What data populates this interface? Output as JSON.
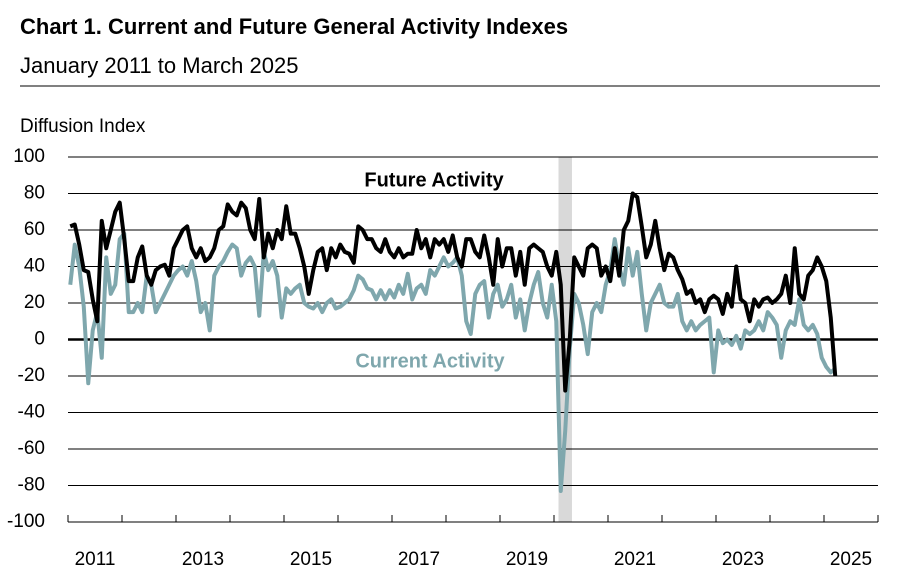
{
  "chart_data": {
    "type": "line",
    "title": "Chart 1. Current and Future General Activity Indexes",
    "subtitle": "January 2011 to March 2025",
    "ylabel": "Diffusion Index",
    "annotations": [
      "Future Activity",
      "Current Activity"
    ],
    "xlim": [
      2011,
      2026
    ],
    "ylim": [
      -100,
      100
    ],
    "yticks": [
      100,
      80,
      60,
      40,
      20,
      0,
      -20,
      -40,
      -60,
      -80,
      -100
    ],
    "xticks": [
      {
        "value": 2011.5,
        "label": "2011"
      },
      {
        "value": 2013.5,
        "label": "2013"
      },
      {
        "value": 2015.5,
        "label": "2015"
      },
      {
        "value": 2017.5,
        "label": "2017"
      },
      {
        "value": 2019.5,
        "label": "2019"
      },
      {
        "value": 2021.5,
        "label": "2021"
      },
      {
        "value": 2023.5,
        "label": "2023"
      },
      {
        "value": 2025.5,
        "label": "2025"
      }
    ],
    "xtick_marks": [
      2011,
      2012,
      2013,
      2014,
      2015,
      2016,
      2017,
      2018,
      2019,
      2020,
      2021,
      2022,
      2023,
      2024,
      2025,
      2026
    ],
    "recession": [
      2020.083,
      2020.333
    ],
    "grid": true,
    "x": [
      2011.042,
      2011.125,
      2011.208,
      2011.292,
      2011.375,
      2011.458,
      2011.542,
      2011.625,
      2011.708,
      2011.792,
      2011.875,
      2011.958,
      2012.042,
      2012.125,
      2012.208,
      2012.292,
      2012.375,
      2012.458,
      2012.542,
      2012.625,
      2012.708,
      2012.792,
      2012.875,
      2012.958,
      2013.042,
      2013.125,
      2013.208,
      2013.292,
      2013.375,
      2013.458,
      2013.542,
      2013.625,
      2013.708,
      2013.792,
      2013.875,
      2013.958,
      2014.042,
      2014.125,
      2014.208,
      2014.292,
      2014.375,
      2014.458,
      2014.542,
      2014.625,
      2014.708,
      2014.792,
      2014.875,
      2014.958,
      2015.042,
      2015.125,
      2015.208,
      2015.292,
      2015.375,
      2015.458,
      2015.542,
      2015.625,
      2015.708,
      2015.792,
      2015.875,
      2015.958,
      2016.042,
      2016.125,
      2016.208,
      2016.292,
      2016.375,
      2016.458,
      2016.542,
      2016.625,
      2016.708,
      2016.792,
      2016.875,
      2016.958,
      2017.042,
      2017.125,
      2017.208,
      2017.292,
      2017.375,
      2017.458,
      2017.542,
      2017.625,
      2017.708,
      2017.792,
      2017.875,
      2017.958,
      2018.042,
      2018.125,
      2018.208,
      2018.292,
      2018.375,
      2018.458,
      2018.542,
      2018.625,
      2018.708,
      2018.792,
      2018.875,
      2018.958,
      2019.042,
      2019.125,
      2019.208,
      2019.292,
      2019.375,
      2019.458,
      2019.542,
      2019.625,
      2019.708,
      2019.792,
      2019.875,
      2019.958,
      2020.042,
      2020.125,
      2020.208,
      2020.292,
      2020.375,
      2020.458,
      2020.542,
      2020.625,
      2020.708,
      2020.792,
      2020.875,
      2020.958,
      2021.042,
      2021.125,
      2021.208,
      2021.292,
      2021.375,
      2021.458,
      2021.542,
      2021.625,
      2021.708,
      2021.792,
      2021.875,
      2021.958,
      2022.042,
      2022.125,
      2022.208,
      2022.292,
      2022.375,
      2022.458,
      2022.542,
      2022.625,
      2022.708,
      2022.792,
      2022.875,
      2022.958,
      2023.042,
      2023.125,
      2023.208,
      2023.292,
      2023.375,
      2023.458,
      2023.542,
      2023.625,
      2023.708,
      2023.792,
      2023.875,
      2023.958,
      2024.042,
      2024.125,
      2024.208,
      2024.292,
      2024.375,
      2024.458,
      2024.542,
      2024.625,
      2024.708,
      2024.792,
      2024.875,
      2024.958,
      2025.042,
      2025.125,
      2025.208
    ],
    "series": [
      {
        "name": "Future Activity",
        "color": "#000000",
        "values": [
          62,
          63,
          52,
          38,
          37,
          22,
          10,
          65,
          50,
          60,
          70,
          75,
          55,
          32,
          32,
          45,
          51,
          35,
          30,
          38,
          40,
          41,
          35,
          50,
          55,
          60,
          62,
          50,
          45,
          50,
          43,
          45,
          50,
          60,
          62,
          74,
          70,
          68,
          75,
          72,
          60,
          55,
          77,
          45,
          58,
          50,
          60,
          55,
          73,
          58,
          58,
          50,
          40,
          25,
          38,
          48,
          50,
          38,
          50,
          45,
          52,
          48,
          47,
          42,
          62,
          60,
          55,
          55,
          50,
          48,
          55,
          48,
          45,
          50,
          45,
          47,
          47,
          60,
          50,
          55,
          45,
          55,
          52,
          55,
          48,
          57,
          45,
          40,
          55,
          55,
          48,
          45,
          57,
          45,
          30,
          55,
          40,
          50,
          50,
          35,
          48,
          30,
          50,
          52,
          50,
          48,
          40,
          35,
          48,
          30,
          -28,
          0,
          45,
          40,
          35,
          50,
          52,
          50,
          35,
          40,
          32,
          50,
          35,
          60,
          65,
          80,
          78,
          62,
          45,
          52,
          65,
          50,
          38,
          47,
          45,
          38,
          33,
          25,
          27,
          20,
          22,
          15,
          22,
          24,
          22,
          14,
          25,
          18,
          40,
          22,
          20,
          10,
          22,
          18,
          22,
          23,
          20,
          22,
          25,
          35,
          20,
          50,
          25,
          22,
          35,
          38,
          45,
          40,
          32,
          12,
          -20
        ]
      },
      {
        "name": "Current Activity",
        "color": "#7fa7ad",
        "values": [
          30,
          52,
          40,
          18,
          -24,
          5,
          15,
          -10,
          45,
          25,
          30,
          55,
          58,
          15,
          15,
          20,
          15,
          35,
          30,
          15,
          20,
          25,
          30,
          35,
          38,
          40,
          35,
          43,
          32,
          15,
          20,
          5,
          35,
          40,
          43,
          48,
          52,
          50,
          35,
          42,
          45,
          40,
          13,
          48,
          38,
          43,
          35,
          12,
          28,
          25,
          28,
          30,
          20,
          18,
          17,
          20,
          15,
          20,
          22,
          17,
          18,
          20,
          22,
          27,
          35,
          33,
          28,
          27,
          22,
          27,
          22,
          27,
          23,
          30,
          25,
          36,
          22,
          28,
          30,
          25,
          38,
          35,
          40,
          45,
          40,
          42,
          45,
          35,
          10,
          3,
          25,
          30,
          32,
          12,
          25,
          30,
          18,
          22,
          30,
          12,
          22,
          5,
          20,
          30,
          37,
          20,
          12,
          30,
          10,
          -83,
          -50,
          -5,
          25,
          20,
          8,
          -8,
          15,
          20,
          15,
          30,
          38,
          55,
          40,
          30,
          50,
          35,
          48,
          25,
          5,
          20,
          25,
          30,
          20,
          18,
          18,
          25,
          10,
          5,
          10,
          5,
          8,
          10,
          12,
          -18,
          5,
          -2,
          0,
          -3,
          2,
          -5,
          5,
          3,
          5,
          10,
          5,
          15,
          12,
          8,
          -10,
          5,
          10,
          8,
          22,
          8,
          5,
          8,
          3,
          -10,
          -15,
          -18,
          -16
        ]
      }
    ]
  }
}
